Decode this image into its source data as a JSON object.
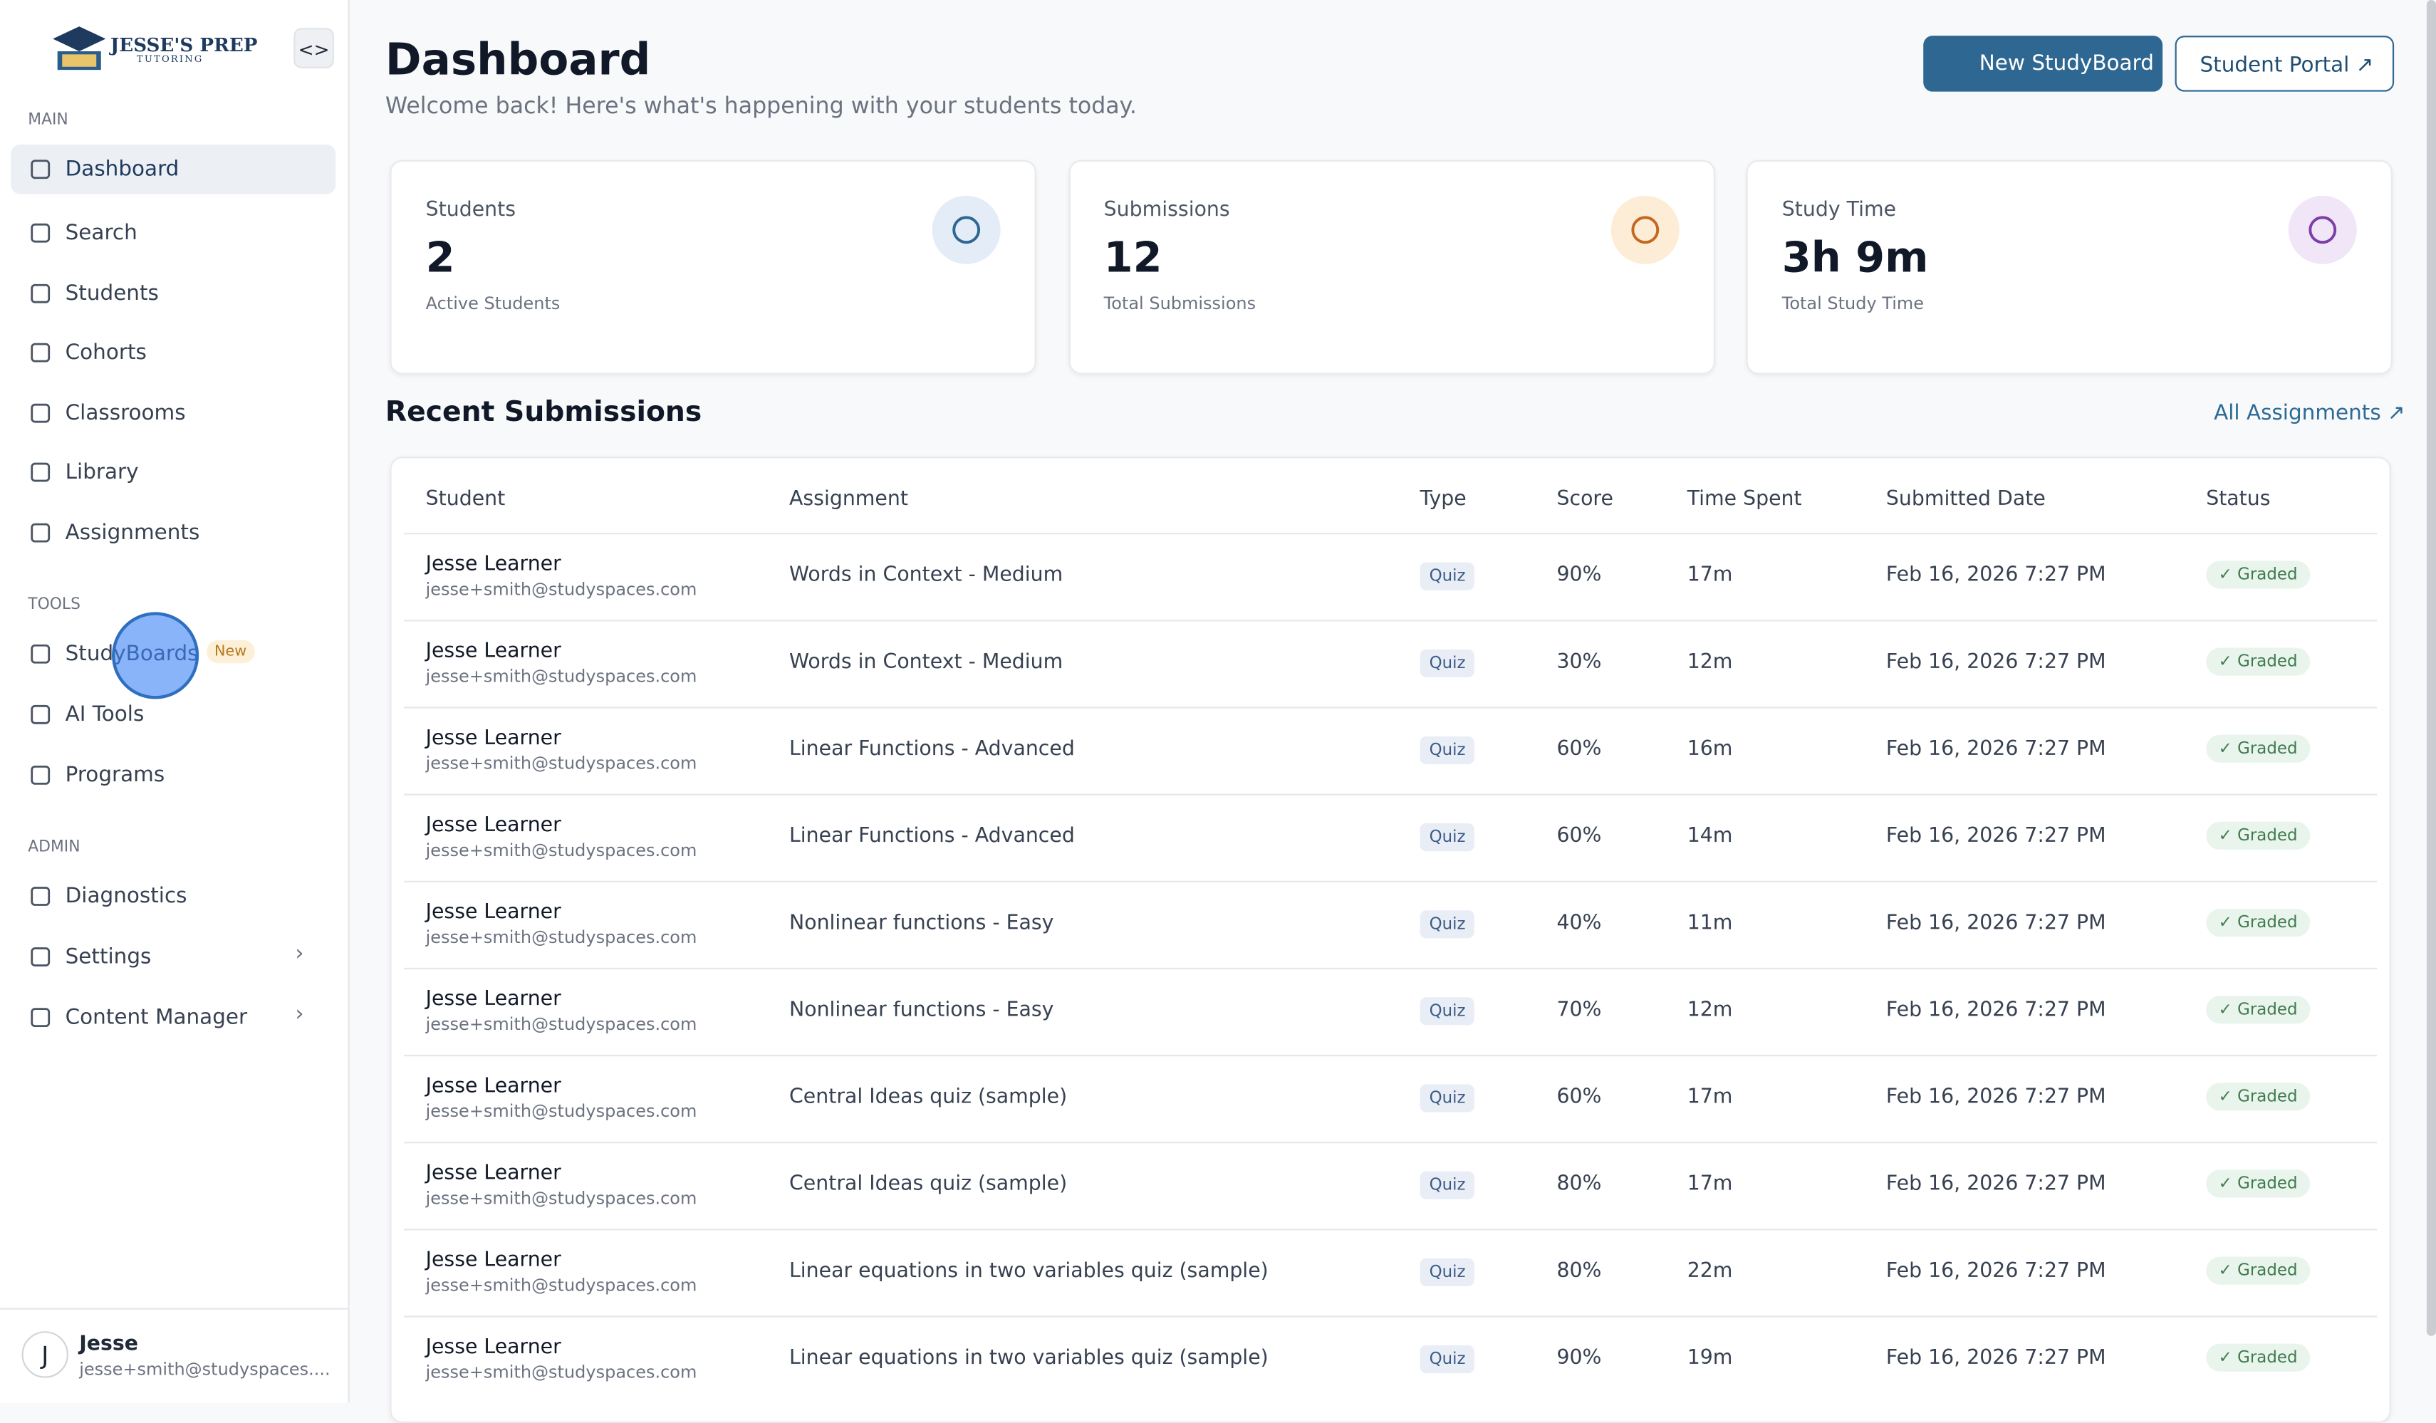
{
  "sidebar": {
    "logo": {
      "line1": "JESSE'S PREP",
      "line2": "TUTORING"
    },
    "sections": [
      {
        "label": "MAIN",
        "items": [
          {
            "label": "Dashboard"
          },
          {
            "label": "Search"
          },
          {
            "label": "Students"
          },
          {
            "label": "Cohorts"
          },
          {
            "label": "Classrooms"
          },
          {
            "label": "Library"
          },
          {
            "label": "Assignments"
          }
        ]
      },
      {
        "label": "TOOLS",
        "items": [
          {
            "label": "StudyBoards",
            "badge": "New"
          },
          {
            "label": "AI Tools"
          },
          {
            "label": "Programs"
          }
        ]
      },
      {
        "label": "ADMIN",
        "items": [
          {
            "label": "Diagnostics"
          },
          {
            "label": "Settings"
          },
          {
            "label": "Content Manager"
          }
        ]
      }
    ],
    "user": {
      "initial": "J",
      "name": "Jesse",
      "email": "jesse+smith@studyspaces...."
    }
  },
  "header": {
    "title": "Dashboard",
    "subtitle": "Welcome back! Here's what's happening with your students today.",
    "primary_button": "New StudyBoard",
    "secondary_button": "Student Portal"
  },
  "stats": [
    {
      "label": "Students",
      "value": "2",
      "caption": "Active Students"
    },
    {
      "label": "Submissions",
      "value": "12",
      "caption": "Total Submissions"
    },
    {
      "label": "Study Time",
      "value": "3h 9m",
      "caption": "Total Study Time"
    }
  ],
  "recent": {
    "title": "Recent Submissions",
    "link": "All Assignments",
    "columns": [
      "Student",
      "Assignment",
      "Type",
      "Score",
      "Time Spent",
      "Submitted Date",
      "Status"
    ],
    "rows": [
      [
        "Jesse Learner",
        "jesse+smith@studyspaces.com",
        "Words in Context - Medium",
        "Quiz",
        "90%",
        "17m",
        "Feb 16, 2026 7:27 PM",
        "Graded"
      ],
      [
        "Jesse Learner",
        "jesse+smith@studyspaces.com",
        "Words in Context - Medium",
        "Quiz",
        "30%",
        "12m",
        "Feb 16, 2026 7:27 PM",
        "Graded"
      ],
      [
        "Jesse Learner",
        "jesse+smith@studyspaces.com",
        "Linear Functions - Advanced",
        "Quiz",
        "60%",
        "16m",
        "Feb 16, 2026 7:27 PM",
        "Graded"
      ],
      [
        "Jesse Learner",
        "jesse+smith@studyspaces.com",
        "Linear Functions - Advanced",
        "Quiz",
        "60%",
        "14m",
        "Feb 16, 2026 7:27 PM",
        "Graded"
      ],
      [
        "Jesse Learner",
        "jesse+smith@studyspaces.com",
        "Nonlinear functions - Easy",
        "Quiz",
        "40%",
        "11m",
        "Feb 16, 2026 7:27 PM",
        "Graded"
      ],
      [
        "Jesse Learner",
        "jesse+smith@studyspaces.com",
        "Nonlinear functions - Easy",
        "Quiz",
        "70%",
        "12m",
        "Feb 16, 2026 7:27 PM",
        "Graded"
      ],
      [
        "Jesse Learner",
        "jesse+smith@studyspaces.com",
        "Central Ideas quiz (sample)",
        "Quiz",
        "60%",
        "17m",
        "Feb 16, 2026 7:27 PM",
        "Graded"
      ],
      [
        "Jesse Learner",
        "jesse+smith@studyspaces.com",
        "Central Ideas quiz (sample)",
        "Quiz",
        "80%",
        "17m",
        "Feb 16, 2026 7:27 PM",
        "Graded"
      ],
      [
        "Jesse Learner",
        "jesse+smith@studyspaces.com",
        "Linear equations in two variables quiz (sample)",
        "Quiz",
        "80%",
        "22m",
        "Feb 16, 2026 7:27 PM",
        "Graded"
      ],
      [
        "Jesse Learner",
        "jesse+smith@studyspaces.com",
        "Linear equations in two variables quiz (sample)",
        "Quiz",
        "90%",
        "19m",
        "Feb 16, 2026 7:27 PM",
        "Graded"
      ]
    ]
  }
}
